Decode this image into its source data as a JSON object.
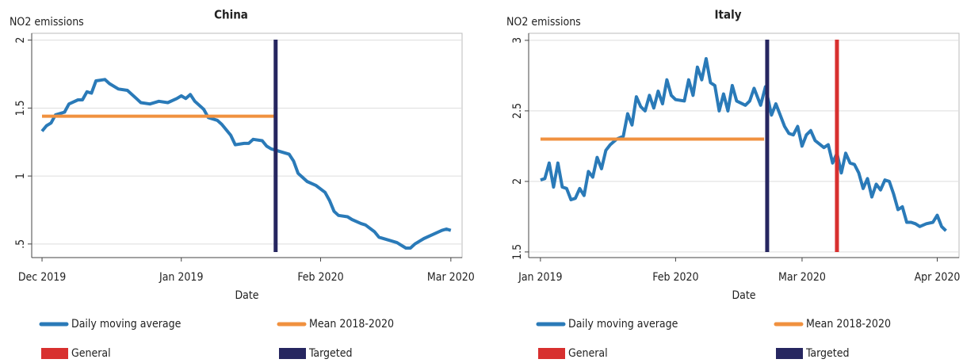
{
  "chart_data": [
    {
      "type": "line",
      "title": "China",
      "ylabel": "NO2 emissions",
      "xlabel": "Date",
      "xlim": [
        -2.3,
        93.5
      ],
      "ylim": [
        0.4,
        2.05
      ],
      "xticks": [
        {
          "value": 0,
          "label": "Dec 2019"
        },
        {
          "value": 31,
          "label": "Jan 2019"
        },
        {
          "value": 62,
          "label": "Feb 2020"
        },
        {
          "value": 91,
          "label": "Mar 2020"
        }
      ],
      "yticks": [
        {
          "value": 0.5,
          "label": ".5"
        },
        1,
        1.5,
        2
      ],
      "grid": true,
      "legend": "bottom",
      "series": [
        {
          "name": "Daily moving average",
          "color": "#2a7ab8",
          "kind": "line",
          "x": [
            0,
            1,
            2,
            3,
            5,
            6,
            8,
            9,
            10,
            11,
            12,
            14,
            15,
            17,
            19,
            21,
            22,
            24,
            26,
            28,
            30,
            31,
            32,
            33,
            34,
            36,
            37,
            39,
            40,
            42,
            43,
            45,
            46,
            47,
            49,
            50,
            51,
            53,
            55,
            56,
            57,
            59,
            61,
            63,
            64,
            65,
            66,
            68,
            69,
            71,
            72,
            74,
            75,
            77,
            79,
            81,
            82,
            83,
            85,
            87,
            89,
            90,
            91
          ],
          "values": [
            1.33,
            1.37,
            1.39,
            1.45,
            1.47,
            1.53,
            1.56,
            1.56,
            1.62,
            1.61,
            1.7,
            1.71,
            1.68,
            1.64,
            1.63,
            1.57,
            1.54,
            1.53,
            1.55,
            1.54,
            1.57,
            1.59,
            1.57,
            1.6,
            1.55,
            1.49,
            1.43,
            1.41,
            1.38,
            1.3,
            1.23,
            1.24,
            1.24,
            1.27,
            1.26,
            1.22,
            1.2,
            1.18,
            1.16,
            1.11,
            1.02,
            0.96,
            0.93,
            0.88,
            0.82,
            0.74,
            0.71,
            0.7,
            0.68,
            0.65,
            0.64,
            0.59,
            0.55,
            0.53,
            0.51,
            0.47,
            0.47,
            0.5,
            0.54,
            0.57,
            0.6,
            0.61,
            0.6
          ]
        },
        {
          "name": "Mean 2018-2020",
          "color": "#f0913f",
          "kind": "line",
          "x": [
            0,
            52
          ],
          "values": [
            1.44,
            1.44
          ]
        },
        {
          "name": "General",
          "color": "#d8302f",
          "kind": "vline",
          "x": []
        },
        {
          "name": "Targeted",
          "color": "#262660",
          "kind": "vline",
          "x": [
            52
          ]
        }
      ]
    },
    {
      "type": "line",
      "title": "Italy",
      "ylabel": "NO2 emissions",
      "xlabel": "Date",
      "xlim": [
        -2.7,
        96
      ],
      "ylim": [
        1.46,
        3.05
      ],
      "xticks": [
        {
          "value": 0,
          "label": "Jan 2019"
        },
        {
          "value": 31,
          "label": "Feb 2020"
        },
        {
          "value": 60,
          "label": "Mar 2020"
        },
        {
          "value": 91,
          "label": "Apr 2020"
        }
      ],
      "yticks": [
        1.5,
        2,
        2.5,
        3
      ],
      "grid": true,
      "legend": "bottom",
      "series": [
        {
          "name": "Daily moving average",
          "color": "#2a7ab8",
          "kind": "line",
          "x": [
            0,
            1,
            2,
            3,
            4,
            5,
            6,
            7,
            8,
            9,
            10,
            11,
            12,
            13,
            14,
            15,
            16,
            17.5,
            19,
            20,
            21,
            22,
            23,
            24,
            25,
            26,
            27,
            28,
            29,
            30,
            31,
            33,
            34,
            35,
            36,
            37,
            38,
            39,
            40,
            41,
            42,
            43,
            44,
            45,
            47,
            48,
            49,
            50.5,
            51.6,
            53,
            54,
            55,
            56,
            57,
            58,
            59,
            60,
            61,
            62,
            63,
            65,
            66,
            67,
            68,
            69,
            70,
            71,
            72,
            73,
            74,
            75,
            76,
            77,
            78,
            79,
            80,
            81,
            82,
            83,
            84,
            85,
            86,
            87,
            88.5,
            90,
            91,
            92,
            93
          ],
          "values": [
            2.01,
            2.02,
            2.13,
            1.96,
            2.13,
            1.96,
            1.95,
            1.87,
            1.88,
            1.95,
            1.9,
            2.07,
            2.03,
            2.17,
            2.09,
            2.22,
            2.26,
            2.3,
            2.32,
            2.48,
            2.4,
            2.6,
            2.53,
            2.5,
            2.61,
            2.52,
            2.64,
            2.55,
            2.72,
            2.61,
            2.58,
            2.57,
            2.72,
            2.61,
            2.81,
            2.72,
            2.87,
            2.7,
            2.68,
            2.5,
            2.62,
            2.5,
            2.68,
            2.57,
            2.54,
            2.57,
            2.66,
            2.54,
            2.67,
            2.47,
            2.55,
            2.47,
            2.39,
            2.34,
            2.33,
            2.39,
            2.25,
            2.33,
            2.36,
            2.29,
            2.24,
            2.26,
            2.13,
            2.2,
            2.06,
            2.2,
            2.13,
            2.12,
            2.06,
            1.95,
            2.02,
            1.89,
            1.98,
            1.94,
            2.01,
            2.0,
            1.91,
            1.8,
            1.82,
            1.71,
            1.71,
            1.7,
            1.68,
            1.7,
            1.71,
            1.76,
            1.68,
            1.65
          ]
        },
        {
          "name": "Mean 2018-2020",
          "color": "#f0913f",
          "kind": "line",
          "x": [
            0,
            51.3
          ],
          "values": [
            2.3,
            2.3
          ]
        },
        {
          "name": "General",
          "color": "#d8302f",
          "kind": "vline",
          "x": [
            68
          ]
        },
        {
          "name": "Targeted",
          "color": "#262660",
          "kind": "vline",
          "x": [
            52
          ]
        }
      ]
    }
  ]
}
